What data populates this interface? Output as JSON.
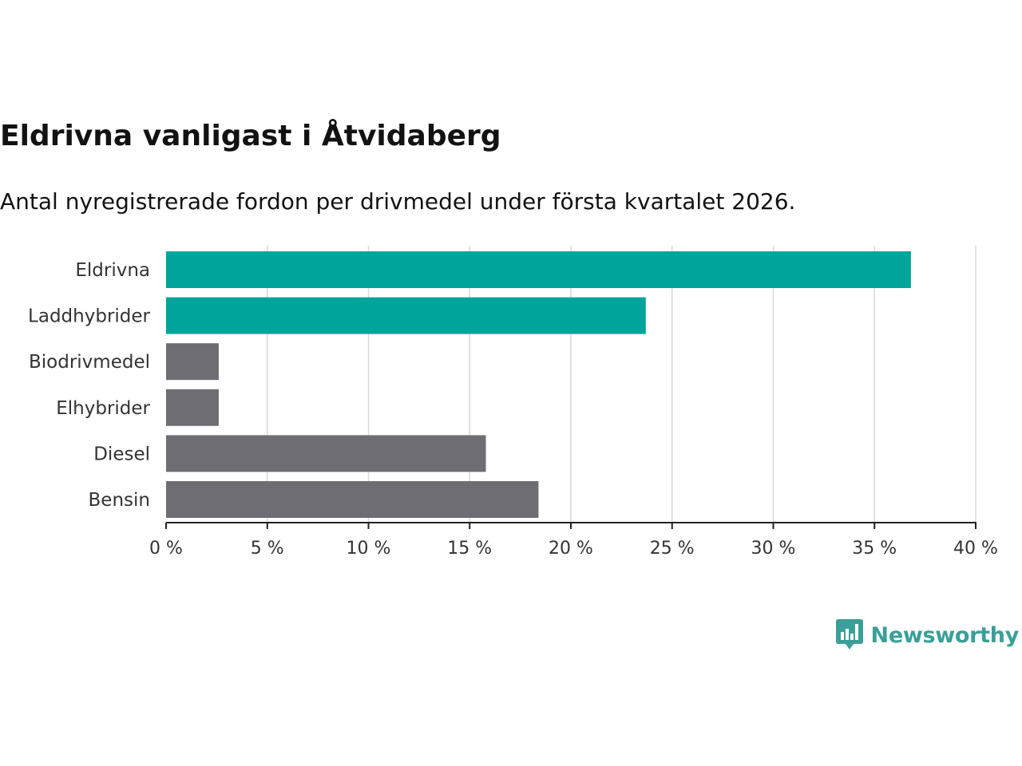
{
  "chart_data": {
    "type": "bar",
    "orientation": "horizontal",
    "title": "Eldrivna vanligast i Åtvidaberg",
    "subtitle": "Antal nyregistrerade fordon per drivmedel under första kvartalet 2026.",
    "categories": [
      "Eldrivna",
      "Laddhybrider",
      "Biodrivmedel",
      "Elhybrider",
      "Diesel",
      "Bensin"
    ],
    "values": [
      36.8,
      23.7,
      2.6,
      2.6,
      15.8,
      18.4
    ],
    "bar_colors": [
      "#00a49a",
      "#00a49a",
      "#6e6d73",
      "#6e6d73",
      "#6e6d73",
      "#6e6d73"
    ],
    "xlim": [
      0,
      40
    ],
    "ticks": [
      0,
      5,
      10,
      15,
      20,
      25,
      30,
      35,
      40
    ],
    "tick_labels": [
      "0 %",
      "5 %",
      "10 %",
      "15 %",
      "20 %",
      "25 %",
      "30 %",
      "35 %",
      "40 %"
    ],
    "xlabel": "",
    "ylabel": "",
    "grid": true
  },
  "logo": {
    "text": "Newsworthy",
    "icon": "bar-chart-icon",
    "color": "#3a9f98"
  }
}
